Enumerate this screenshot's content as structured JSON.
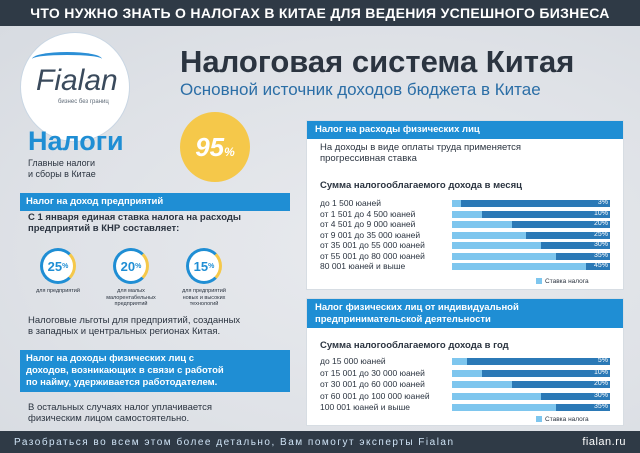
{
  "banner": "ЧТО НУЖНО ЗНАТЬ О НАЛОГАХ В КИТАЕ ДЛЯ ВЕДЕНИЯ УСПЕШНОГО БИЗНЕСА",
  "logo": {
    "name": "Fialan",
    "tagline": "бизнес без границ"
  },
  "title": "Налоговая система Китая",
  "subtitle": "Основной источник доходов бюджета в Китае",
  "taxes": {
    "heading": "Налоги",
    "sub1": "Главные налоги",
    "sub2": "и сборы в Китае",
    "percent": "95",
    "percent_sign": "%"
  },
  "corp": {
    "header": "Налог на доход предприятий",
    "intro1": "С 1 января единая ставка налога на расходы",
    "intro2": "предприятий в КНР составляет:",
    "rates": [
      {
        "value": "25",
        "label": "для предприятий"
      },
      {
        "value": "20",
        "label": "для малых малорентабельных предприятий"
      },
      {
        "value": "15",
        "label": "для предприятий новых и высоких технологий"
      }
    ],
    "note1": "Налоговые льготы для предприятий, созданных",
    "note2": "в западных и центральных регионах Китая."
  },
  "personal_box": {
    "line1": "Налог на доходы физических лиц с",
    "line2": "доходов, возникающих в связи с работой",
    "line3": "по найму, удерживается работодателем.",
    "note1": "В остальных случаях налог уплачивается",
    "note2": "физическим лицом самостоятельно."
  },
  "panel1": {
    "header": "Налог на расходы физических лиц",
    "desc1": "На доходы в виде оплаты труда применяется",
    "desc2": "прогрессивная ставка",
    "table_title": "Сумма налогооблагаемого дохода в месяц",
    "legend": "Ставка налога",
    "rows": [
      {
        "label": "до 1 500 юаней",
        "pct": "3%",
        "rate": 3
      },
      {
        "label": "от 1 501 до 4 500 юаней",
        "pct": "10%",
        "rate": 10
      },
      {
        "label": "от 4 501 до 9 000 юаней",
        "pct": "20%",
        "rate": 20
      },
      {
        "label": "от 9 001 до 35 000 юаней",
        "pct": "25%",
        "rate": 25
      },
      {
        "label": "от 35 001 до 55 000 юаней",
        "pct": "30%",
        "rate": 30
      },
      {
        "label": "от 55 001 до 80 000 юаней",
        "pct": "35%",
        "rate": 35
      },
      {
        "label": "80 001 юаней и выше",
        "pct": "45%",
        "rate": 45
      }
    ]
  },
  "panel2": {
    "header1": "Налог физических лиц от индивидуальной",
    "header2": "предпринимательской деятельности",
    "table_title": "Сумма налогооблагаемого дохода в год",
    "legend": "Ставка налога",
    "rows": [
      {
        "label": "до 15 000 юаней",
        "pct": "5%",
        "rate": 5
      },
      {
        "label": "от 15 001 до 30 000 юаней",
        "pct": "10%",
        "rate": 10
      },
      {
        "label": "от 30 001 до 60 000 юаней",
        "pct": "20%",
        "rate": 20
      },
      {
        "label": "от 60 001 до 100 000 юаней",
        "pct": "30%",
        "rate": 30
      },
      {
        "label": "100 001 юаней и выше",
        "pct": "35%",
        "rate": 35
      }
    ]
  },
  "footer": {
    "text": "Разобраться во всем этом более детально, Вам помогут эксперты Fialan",
    "site": "fialan.ru"
  }
}
